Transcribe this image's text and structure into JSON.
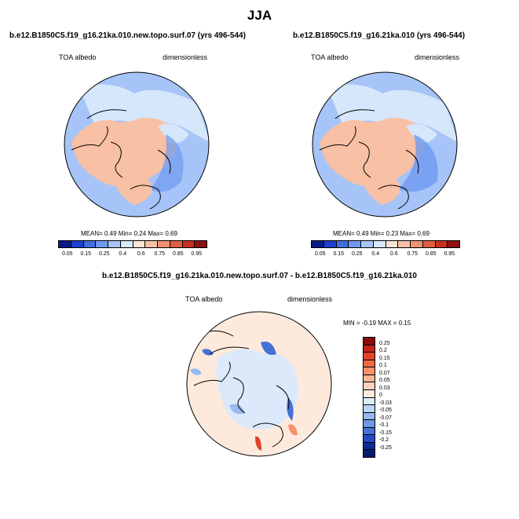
{
  "title": "JJA",
  "panels": [
    {
      "case": "b.e12.B1850C5.f19_g16.21ka.010.new.topo.surf.07 (yrs 496-544)",
      "variable": "TOA albedo",
      "units": "dimensionless",
      "stats": "MEAN=  0.49  Min=  0.24  Max=  0.69"
    },
    {
      "case": "b.e12.B1850C5.f19_g16.21ka.010 (yrs 496-544)",
      "variable": "TOA albedo",
      "units": "dimensionless",
      "stats": "MEAN=  0.49  Min=  0.23  Max=  0.69"
    }
  ],
  "abs_colorbar": {
    "labels": [
      "0.05",
      "0.15",
      "0.25",
      "0.4",
      "0.6",
      "0.75",
      "0.85",
      "0.95"
    ],
    "colors": [
      "#0a1a8c",
      "#1f3fd0",
      "#3f6ee0",
      "#6f9af0",
      "#a6c4f7",
      "#d6e6fb",
      "#fbe3d6",
      "#f8c0a4",
      "#f09272",
      "#e05e42",
      "#c8301f",
      "#901010"
    ]
  },
  "diff_panel": {
    "title": "b.e12.B1850C5.f19_g16.21ka.010.new.topo.surf.07 - b.e12.B1850C5.f19_g16.21ka.010",
    "variable": "TOA albedo",
    "units": "dimensionless",
    "minmax": "MIN =  -0.19 MAX =   0.15"
  },
  "diff_colorbar": {
    "labels": [
      "0.25",
      "0.2",
      "0.15",
      "0.1",
      "0.07",
      "0.05",
      "0.03",
      "0",
      "-0.03",
      "-0.05",
      "-0.07",
      "-0.1",
      "-0.15",
      "-0.2",
      "-0.25"
    ],
    "colors": [
      "#8c0c0c",
      "#c4241a",
      "#e04428",
      "#f06a40",
      "#f7916a",
      "#f9b594",
      "#fbd3bd",
      "#fdeadd",
      "#dce9fb",
      "#bcd3f6",
      "#97b8f0",
      "#6f98e6",
      "#4672d8",
      "#2549c0",
      "#0f2a96",
      "#071a72"
    ]
  }
}
